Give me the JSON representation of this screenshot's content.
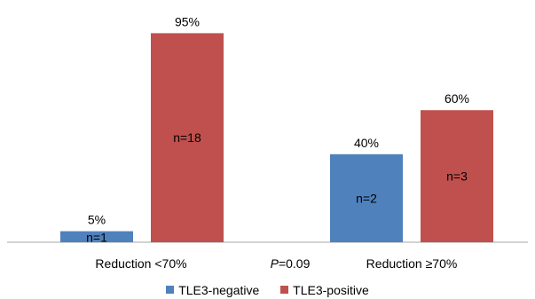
{
  "chart_data": {
    "type": "bar",
    "categories": [
      "Reduction <70%",
      "Reduction ≥70%"
    ],
    "series": [
      {
        "name": "TLE3-negative",
        "color": "#4f81bd",
        "values": [
          5,
          40
        ],
        "value_labels": [
          "5%",
          "40%"
        ],
        "n_labels": [
          "n=1",
          "n=2"
        ]
      },
      {
        "name": "TLE3-positive",
        "color": "#c0504d",
        "values": [
          95,
          60
        ],
        "value_labels": [
          "95%",
          "60%"
        ],
        "n_labels": [
          "n=18",
          "n=3"
        ]
      }
    ],
    "annotation": {
      "italic": "P",
      "text": "=0.09"
    },
    "ylim": [
      0,
      100
    ],
    "grid": false,
    "legend_position": "bottom"
  }
}
